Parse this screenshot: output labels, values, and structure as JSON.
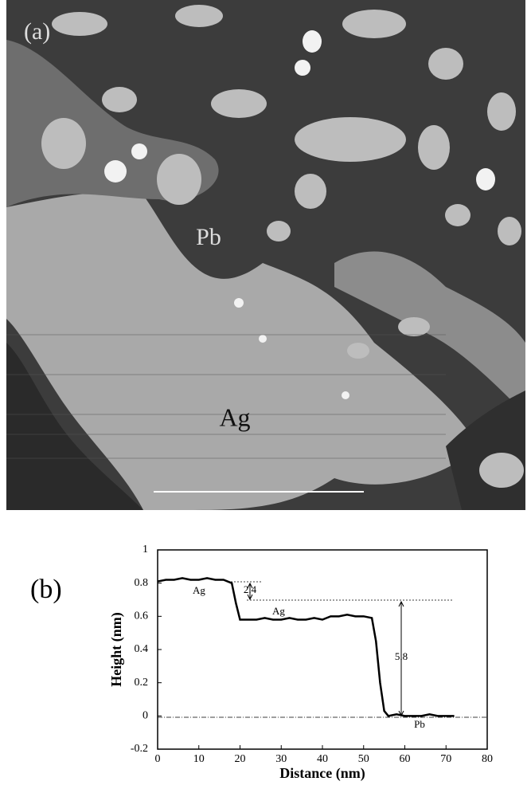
{
  "panel_a": {
    "label": "(a)",
    "labels": [
      "Pb",
      "Ag"
    ]
  },
  "chart_data": {
    "type": "line",
    "panel_label": "(b)",
    "x_label": "Distance (nm)",
    "y_label": "Height (nm)",
    "xlim": [
      0,
      80
    ],
    "xticks": [
      0,
      10,
      20,
      30,
      40,
      50,
      60,
      70,
      80
    ],
    "ylim": [
      -0.2,
      1
    ],
    "yticks": [
      -0.2,
      0,
      0.2,
      0.4,
      0.6,
      0.8,
      1
    ],
    "x": [
      0,
      2,
      4,
      6,
      8,
      10,
      12,
      14,
      16,
      18,
      19,
      20,
      22,
      24,
      26,
      28,
      30,
      32,
      34,
      36,
      38,
      40,
      42,
      44,
      46,
      48,
      50,
      52,
      53,
      54,
      55,
      56,
      58,
      60,
      62,
      64,
      66,
      68,
      70,
      72
    ],
    "series": [
      {
        "color": "#000000",
        "values": [
          0.81,
          0.82,
          0.82,
          0.83,
          0.82,
          0.82,
          0.83,
          0.82,
          0.82,
          0.8,
          0.68,
          0.58,
          0.58,
          0.58,
          0.59,
          0.58,
          0.58,
          0.59,
          0.58,
          0.58,
          0.59,
          0.58,
          0.6,
          0.6,
          0.61,
          0.6,
          0.6,
          0.59,
          0.45,
          0.2,
          0.03,
          0.0,
          0.01,
          0.0,
          0.0,
          0.0,
          0.01,
          0.0,
          0.0,
          0.0
        ]
      }
    ],
    "annotations": [
      "Ag",
      "Ag",
      "Pb",
      "2.4",
      "5.8"
    ]
  }
}
